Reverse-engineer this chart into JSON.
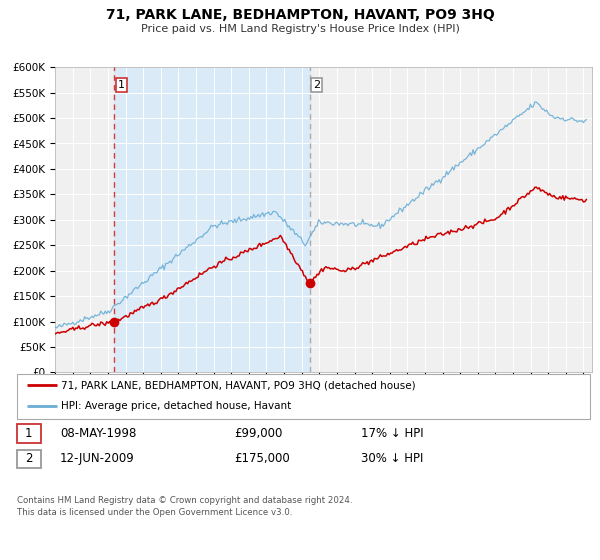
{
  "title": "71, PARK LANE, BEDHAMPTON, HAVANT, PO9 3HQ",
  "subtitle": "Price paid vs. HM Land Registry's House Price Index (HPI)",
  "ylim": [
    0,
    600000
  ],
  "yticks": [
    0,
    50000,
    100000,
    150000,
    200000,
    250000,
    300000,
    350000,
    400000,
    450000,
    500000,
    550000,
    600000
  ],
  "xlim_start": 1995.0,
  "xlim_end": 2025.5,
  "sale1_date": 1998.36,
  "sale1_price": 99000,
  "sale1_label": "1",
  "sale2_date": 2009.45,
  "sale2_price": 175000,
  "sale2_label": "2",
  "shaded_start": 1998.36,
  "shaded_end": 2009.45,
  "red_line_color": "#cc0000",
  "blue_line_color": "#6aaed6",
  "shade_color": "#daeaf7",
  "vline1_color": "#cc0000",
  "vline2_color": "#999999",
  "legend_entry1": "71, PARK LANE, BEDHAMPTON, HAVANT, PO9 3HQ (detached house)",
  "legend_entry2": "HPI: Average price, detached house, Havant",
  "table_row1": [
    "1",
    "08-MAY-1998",
    "£99,000",
    "17% ↓ HPI"
  ],
  "table_row2": [
    "2",
    "12-JUN-2009",
    "£175,000",
    "30% ↓ HPI"
  ],
  "footnote1": "Contains HM Land Registry data © Crown copyright and database right 2024.",
  "footnote2": "This data is licensed under the Open Government Licence v3.0.",
  "background_color": "#ffffff",
  "plot_background": "#f0f0f0"
}
